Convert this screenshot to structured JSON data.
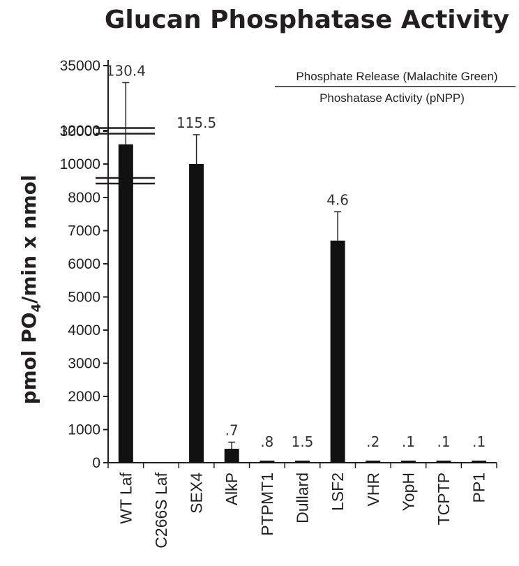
{
  "chart_data": {
    "type": "bar",
    "title": "Glucan Phosphatase Activity",
    "ylabel_prefix": "pmol PO",
    "ylabel_sub": "4",
    "ylabel_suffix": "/min x nmol",
    "xlabel": "",
    "legend": {
      "numerator": "Phosphate Release (Malachite Green)",
      "denominator": "Phoshatase Activity (pNPP)",
      "position": "top-right"
    },
    "y_axis": {
      "broken": true,
      "segments": [
        {
          "range": [
            0,
            8000
          ],
          "ticks": [
            0,
            1000,
            2000,
            3000,
            4000,
            5000,
            6000,
            7000,
            8000
          ]
        },
        {
          "range": [
            10000,
            12000
          ],
          "ticks": [
            10000,
            12000
          ]
        },
        {
          "range": [
            30000,
            35000
          ],
          "ticks": [
            30000,
            35000
          ]
        }
      ],
      "tick_labels": [
        "0",
        "1000",
        "2000",
        "3000",
        "4000",
        "5000",
        "6000",
        "7000",
        "8000",
        "10000",
        "12000",
        "30000",
        "35000"
      ]
    },
    "categories": [
      "WT Laf",
      "C266S Laf",
      "SEX4",
      "AlkP",
      "PTPMT1",
      "Dullard",
      "LSF2",
      "VHR",
      "YopH",
      "TCPTP",
      "PP1"
    ],
    "values": [
      29000,
      0,
      10000,
      420,
      20,
      20,
      6700,
      20,
      60,
      20,
      20
    ],
    "error_upper": [
      33700,
      null,
      11750,
      620,
      null,
      null,
      7570,
      null,
      null,
      null,
      null
    ],
    "data_labels": [
      "130.4",
      "",
      "115.5",
      ".7",
      ".8",
      "1.5",
      "4.6",
      ".2",
      ".1",
      ".1",
      ".1"
    ],
    "grid": false,
    "bar_color": "#111111"
  }
}
